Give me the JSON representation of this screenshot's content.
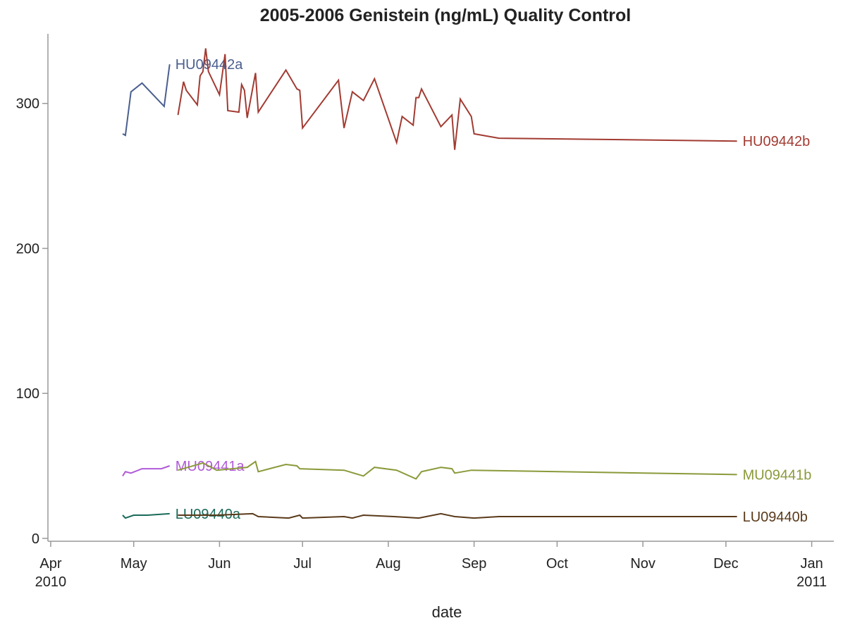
{
  "chart_data": {
    "type": "line",
    "title": "2005-2006 Genistein (ng/mL) Quality Control",
    "x_label": "date",
    "xlim": [
      "2010-03-31",
      "2011-01-09"
    ],
    "xticks": [
      {
        "value": "2010-04-01",
        "label": "Apr 2010"
      },
      {
        "value": "2010-05-01",
        "label": "May"
      },
      {
        "value": "2010-06-01",
        "label": "Jun"
      },
      {
        "value": "2010-07-01",
        "label": "Jul"
      },
      {
        "value": "2010-08-01",
        "label": "Aug"
      },
      {
        "value": "2010-09-01",
        "label": "Sep"
      },
      {
        "value": "2010-10-01",
        "label": "Oct"
      },
      {
        "value": "2010-11-01",
        "label": "Nov"
      },
      {
        "value": "2010-12-01",
        "label": "Dec"
      },
      {
        "value": "2011-01-01",
        "label": "Jan 2011"
      }
    ],
    "ylim": [
      -2,
      348
    ],
    "yticks": [
      0,
      100,
      200,
      300
    ],
    "series": [
      {
        "name": "HU09442a",
        "color": "#4a5e8f",
        "x": [
          "2010-04-27",
          "2010-04-28",
          "2010-04-30",
          "2010-05-04",
          "2010-05-12",
          "2010-05-14"
        ],
        "values": [
          279,
          278,
          308,
          314,
          298,
          327
        ]
      },
      {
        "name": "HU09442b",
        "color": "#a23b32",
        "x": [
          "2010-05-17",
          "2010-05-19",
          "2010-05-20",
          "2010-05-24",
          "2010-05-25",
          "2010-05-26",
          "2010-05-27",
          "2010-05-28",
          "2010-06-01",
          "2010-06-03",
          "2010-06-04",
          "2010-06-08",
          "2010-06-09",
          "2010-06-10",
          "2010-06-11",
          "2010-06-14",
          "2010-06-15",
          "2010-06-25",
          "2010-06-29",
          "2010-06-30",
          "2010-07-01",
          "2010-07-14",
          "2010-07-16",
          "2010-07-19",
          "2010-07-23",
          "2010-07-27",
          "2010-08-04",
          "2010-08-06",
          "2010-08-10",
          "2010-08-11",
          "2010-08-12",
          "2010-08-13",
          "2010-08-20",
          "2010-08-24",
          "2010-08-25",
          "2010-08-27",
          "2010-08-31",
          "2010-09-01",
          "2010-09-10",
          "2010-12-05"
        ],
        "values": [
          292,
          315,
          309,
          299,
          319,
          322,
          338,
          322,
          306,
          334,
          295,
          294,
          313,
          309,
          290,
          321,
          294,
          323,
          310,
          309,
          283,
          316,
          283,
          308,
          302,
          317,
          273,
          291,
          285,
          304,
          304,
          310,
          284,
          292,
          268,
          303,
          291,
          279,
          276,
          274
        ]
      },
      {
        "name": "MU09441a",
        "color": "#b05ad8",
        "x": [
          "2010-04-27",
          "2010-04-28",
          "2010-04-30",
          "2010-05-04",
          "2010-05-11",
          "2010-05-14"
        ],
        "values": [
          43,
          46,
          45,
          48,
          48,
          50
        ]
      },
      {
        "name": "MU09441b",
        "color": "#8a9a3a",
        "x": [
          "2010-05-17",
          "2010-05-26",
          "2010-05-31",
          "2010-06-11",
          "2010-06-14",
          "2010-06-15",
          "2010-06-25",
          "2010-06-29",
          "2010-06-30",
          "2010-07-16",
          "2010-07-23",
          "2010-07-27",
          "2010-08-04",
          "2010-08-11",
          "2010-08-13",
          "2010-08-20",
          "2010-08-24",
          "2010-08-25",
          "2010-08-31",
          "2010-12-05"
        ],
        "values": [
          47,
          52,
          47,
          49,
          53,
          46,
          51,
          50,
          48,
          47,
          43,
          49,
          47,
          41,
          46,
          49,
          48,
          45,
          47,
          44
        ]
      },
      {
        "name": "LU09440a",
        "color": "#1a6a5a",
        "x": [
          "2010-04-27",
          "2010-04-28",
          "2010-05-01",
          "2010-05-06",
          "2010-05-14"
        ],
        "values": [
          16,
          14,
          16,
          16,
          17
        ]
      },
      {
        "name": "LU09440b",
        "color": "#5a3a1a",
        "x": [
          "2010-05-17",
          "2010-05-31",
          "2010-06-13",
          "2010-06-15",
          "2010-06-26",
          "2010-06-30",
          "2010-07-01",
          "2010-07-16",
          "2010-07-19",
          "2010-07-23",
          "2010-08-03",
          "2010-08-12",
          "2010-08-20",
          "2010-08-25",
          "2010-09-01",
          "2010-09-10",
          "2010-12-05"
        ],
        "values": [
          16,
          16,
          17,
          15,
          14,
          16,
          14,
          15,
          14,
          16,
          15,
          14,
          17,
          15,
          14,
          15,
          15
        ]
      }
    ]
  }
}
